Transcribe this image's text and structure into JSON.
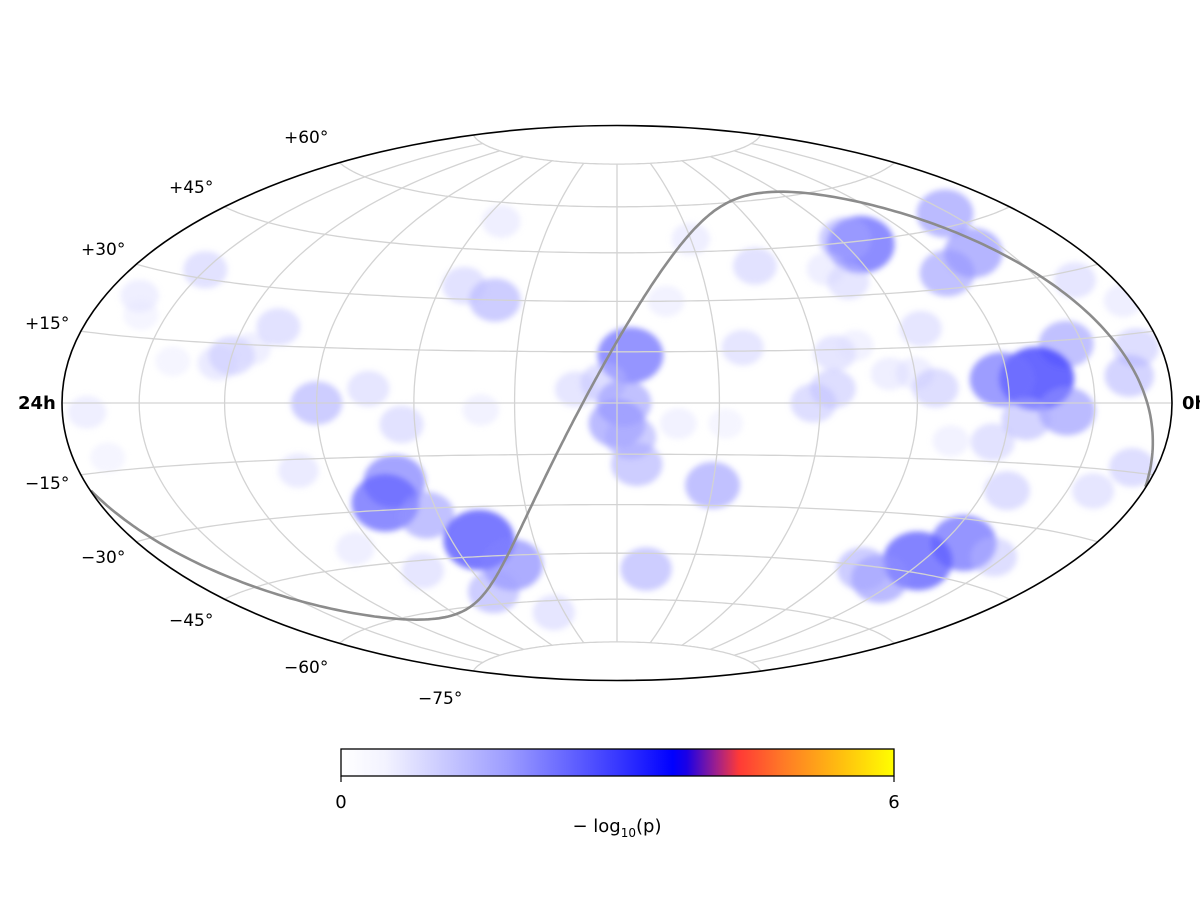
{
  "map": {
    "projection": "Hammer-Aitoff",
    "ra_labels": {
      "left": "24h",
      "right": "0h"
    },
    "lat_labels": [
      "+60°",
      "+45°",
      "+30°",
      "+15°",
      "−15°",
      "−30°",
      "−45°",
      "−60°",
      "−75°"
    ],
    "graticule": {
      "dec_lines_deg": [
        -75,
        -60,
        -45,
        -30,
        -15,
        0,
        15,
        30,
        45,
        60,
        75
      ],
      "ra_lines_deg": [
        30,
        60,
        90,
        120,
        150,
        180,
        210,
        240,
        270,
        300,
        330
      ]
    },
    "colors": {
      "graticule": "#d3d3d3",
      "outline": "#000000",
      "plane_curve": "#8c8c8c",
      "low": "#ffffff",
      "mid": "#0000ff",
      "high1": "#ff4433",
      "high2": "#ffff00"
    }
  },
  "colorbar": {
    "min_label": "0",
    "max_label": "6",
    "label_prefix": "− log",
    "label_sub": "10",
    "label_suffix": "(p)",
    "range": [
      0,
      6
    ]
  },
  "chart_data": {
    "type": "heatmap",
    "value_name": "−log10(p)",
    "scale": [
      0,
      6
    ],
    "hotspots": [
      {
        "ra": 148,
        "dec": 48,
        "value": 1.6
      },
      {
        "ra": 136,
        "dec": 38,
        "value": 1.7
      },
      {
        "ra": 118,
        "dec": 34,
        "value": 1.5
      },
      {
        "ra": 96,
        "dec": 44,
        "value": 2.2
      },
      {
        "ra": 92,
        "dec": 46,
        "value": 1.3
      },
      {
        "ra": 30,
        "dec": 49,
        "value": 0.6
      },
      {
        "ra": 164,
        "dec": 28,
        "value": 0.8
      },
      {
        "ra": 170,
        "dec": 12,
        "value": 1.0
      },
      {
        "ra": 144,
        "dec": 14,
        "value": 1.5
      },
      {
        "ra": 130,
        "dec": 6,
        "value": 2.6
      },
      {
        "ra": 118,
        "dec": 6,
        "value": 2.0
      },
      {
        "ra": 140,
        "dec": -2,
        "value": 1.6
      },
      {
        "ra": 126,
        "dec": -4,
        "value": 1.2
      },
      {
        "ra": 116,
        "dec": -10,
        "value": 0.9
      },
      {
        "ra": 128,
        "dec": -36,
        "value": 2.1
      },
      {
        "ra": 118,
        "dec": -42,
        "value": 2.3
      },
      {
        "ra": 112,
        "dec": -48,
        "value": 1.6
      },
      {
        "ra": 100,
        "dec": -46,
        "value": 1.3
      },
      {
        "ra": 146,
        "dec": -38,
        "value": 1.0
      },
      {
        "ra": 128,
        "dec": -22,
        "value": 1.0
      },
      {
        "ra": 160,
        "dec": -20,
        "value": 0.8
      },
      {
        "ra": 50,
        "dec": 40,
        "value": 0.9
      },
      {
        "ra": 80,
        "dec": 34,
        "value": 0.8
      },
      {
        "ra": 38,
        "dec": 16,
        "value": 0.8
      },
      {
        "ra": 164,
        "dec": 6,
        "value": 1.2
      },
      {
        "ra": 170,
        "dec": -14,
        "value": 1.0
      },
      {
        "ra": 176,
        "dec": 22,
        "value": 0.6
      },
      {
        "ra": 75,
        "dec": 38,
        "value": 0.6
      },
      {
        "ra": 96,
        "dec": 20,
        "value": 0.8
      },
      {
        "ra": 66,
        "dec": 14,
        "value": 0.8
      },
      {
        "ra": 82,
        "dec": 8,
        "value": 0.6
      },
      {
        "ra": 73,
        "dec": 16,
        "value": 0.5
      },
      {
        "ra": 90,
        "dec": 8,
        "value": 0.6
      },
      {
        "ra": 64,
        "dec": 4,
        "value": 1.0
      },
      {
        "ra": 58,
        "dec": 0,
        "value": 1.0
      },
      {
        "ra": 96,
        "dec": 4,
        "value": 1.0
      },
      {
        "ra": 102,
        "dec": -10,
        "value": 0.5
      },
      {
        "ra": 4,
        "dec": 14,
        "value": 2.1
      },
      {
        "ra": -4,
        "dec": 6,
        "value": 1.0
      },
      {
        "ra": 2,
        "dec": 0,
        "value": 1.5
      },
      {
        "ra": 0,
        "dec": -6,
        "value": 1.6
      },
      {
        "ra": 4,
        "dec": -10,
        "value": 1.3
      },
      {
        "ra": 6,
        "dec": -18,
        "value": 1.3
      },
      {
        "ra": -12,
        "dec": 4,
        "value": 0.8
      },
      {
        "ra": 16,
        "dec": 30,
        "value": 0.5
      },
      {
        "ra": 18,
        "dec": -6,
        "value": 0.5
      },
      {
        "ra": 32,
        "dec": -6,
        "value": 0.4
      },
      {
        "ra": 30,
        "dec": -24,
        "value": 1.5
      },
      {
        "ra": 12,
        "dec": -50,
        "value": 1.3
      },
      {
        "ra": -40,
        "dec": 30,
        "value": 1.3
      },
      {
        "ra": -52,
        "dec": 34,
        "value": 0.9
      },
      {
        "ra": -52,
        "dec": 54,
        "value": 0.6
      },
      {
        "ra": -40,
        "dec": -2,
        "value": 0.5
      },
      {
        "ra": -90,
        "dec": 0,
        "value": 1.3
      },
      {
        "ra": -64,
        "dec": -6,
        "value": 0.9
      },
      {
        "ra": -74,
        "dec": 4,
        "value": 0.8
      },
      {
        "ra": -100,
        "dec": -18,
        "value": 0.7
      },
      {
        "ra": -70,
        "dec": -22,
        "value": 1.9
      },
      {
        "ra": -76,
        "dec": -28,
        "value": 2.2
      },
      {
        "ra": -64,
        "dec": -32,
        "value": 1.5
      },
      {
        "ra": -50,
        "dec": -40,
        "value": 2.4
      },
      {
        "ra": -42,
        "dec": -48,
        "value": 1.8
      },
      {
        "ra": -58,
        "dec": -56,
        "value": 1.3
      },
      {
        "ra": -36,
        "dec": -64,
        "value": 0.8
      },
      {
        "ra": -108,
        "dec": 20,
        "value": 0.9
      },
      {
        "ra": -120,
        "dec": 12,
        "value": 1.0
      },
      {
        "ra": -124,
        "dec": 10,
        "value": 0.7
      },
      {
        "ra": -114,
        "dec": 14,
        "value": 0.6
      },
      {
        "ra": -140,
        "dec": 10,
        "value": 0.4
      },
      {
        "ra": -150,
        "dec": 32,
        "value": 0.9
      },
      {
        "ra": -166,
        "dec": 24,
        "value": 0.6
      },
      {
        "ra": -170,
        "dec": -2,
        "value": 0.6
      },
      {
        "ra": -166,
        "dec": -12,
        "value": 0.4
      },
      {
        "ra": -160,
        "dec": 20,
        "value": 0.4
      },
      {
        "ra": -80,
        "dec": -48,
        "value": 0.8
      },
      {
        "ra": -98,
        "dec": -40,
        "value": 0.6
      }
    ]
  }
}
